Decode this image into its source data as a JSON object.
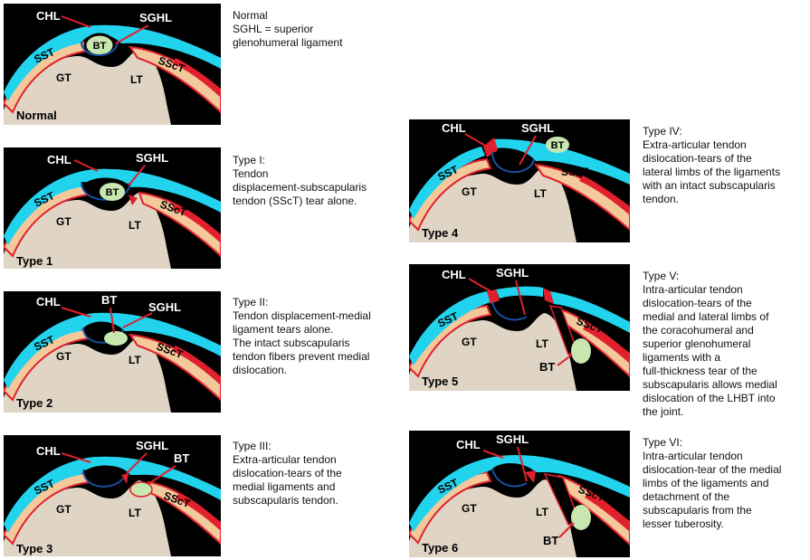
{
  "colors": {
    "background": "#000000",
    "bone": "#e0d5c5",
    "cartilage": "#f3c89b",
    "capsule": "#22d3ee",
    "ligament_dark": "#1a4fa0",
    "tendon_red": "#e0202c",
    "biceps": "#c8e6b0",
    "arrow": "#e0202c"
  },
  "labels": {
    "chl": "CHL",
    "sghl": "SGHL",
    "bt": "BT",
    "sst": "SST",
    "gt": "GT",
    "lt": "LT",
    "ssct": "SScT"
  },
  "panels": [
    {
      "id": "normal",
      "badge": "Normal",
      "description": "Normal\nSGHL = superior\nglenohumeral ligament"
    },
    {
      "id": "type1",
      "badge": "Type 1",
      "description": "Type I:\nTendon\ndisplacement-subscapularis\ntendon (SScT) tear alone."
    },
    {
      "id": "type2",
      "badge": "Type 2",
      "description": "Type II:\nTendon displacement-medial\nligament tears alone.\nThe intact subscapularis\ntendon fibers prevent medial\ndislocation."
    },
    {
      "id": "type3",
      "badge": "Type 3",
      "description": "Type III:\nExtra-articular tendon\ndislocation-tears of the\nmedial ligaments and\nsubscapularis tendon."
    },
    {
      "id": "type4",
      "badge": "Type 4",
      "description": "Type IV:\nExtra-articular tendon\ndislocation-tears of the\nlateral limbs of the ligaments\nwith an intact subscapularis\ntendon."
    },
    {
      "id": "type5",
      "badge": "Type 5",
      "description": "Type V:\nIntra-articular tendon\ndislocation-tears of the\nmedial and lateral limbs of\nthe coracohumeral and\nsuperior glenohumeral\nligaments with a\nfull-thickness tear of the\nsubscapularis allows medial\ndislocation of the LHBT into\nthe joint."
    },
    {
      "id": "type6",
      "badge": "Type 6",
      "description": "Type VI:\nIntra-articular tendon\ndislocation-tear of the medial\nlimbs of the ligaments and\ndetachment of the\nsubscapularis from the\nlesser tuberosity."
    }
  ]
}
